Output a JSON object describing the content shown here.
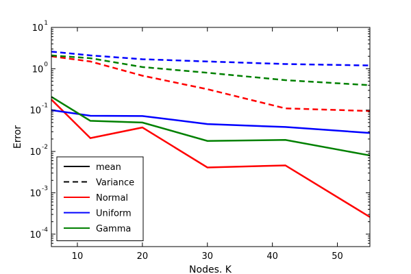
{
  "chart_data": {
    "type": "line",
    "xlabel": "Nodes. K",
    "ylabel": "Error",
    "xlim": [
      6,
      55
    ],
    "ylim": [
      5e-05,
      10
    ],
    "yscale": "log",
    "grid": false,
    "legend_position": "lower-left",
    "x_ticks": [
      10,
      20,
      30,
      40,
      50
    ],
    "y_ticks": [
      {
        "value": 0.0001,
        "base": "10",
        "exp": "-4"
      },
      {
        "value": 0.001,
        "base": "10",
        "exp": "-3"
      },
      {
        "value": 0.01,
        "base": "10",
        "exp": "-2"
      },
      {
        "value": 0.1,
        "base": "10",
        "exp": "-1"
      },
      {
        "value": 1,
        "base": "10",
        "exp": "0"
      },
      {
        "value": 10,
        "base": "10",
        "exp": "1"
      }
    ],
    "x": [
      6,
      12,
      20,
      30,
      42,
      55
    ],
    "series": [
      {
        "distribution": "Normal",
        "statistic": "mean",
        "color": "#ff0000",
        "dash": "solid",
        "values": [
          0.18,
          0.021,
          0.038,
          0.0041,
          0.0046,
          0.00026
        ]
      },
      {
        "distribution": "Normal",
        "statistic": "Variance",
        "color": "#ff0000",
        "dash": "dashed",
        "values": [
          2.0,
          1.5,
          0.68,
          0.32,
          0.11,
          0.095
        ]
      },
      {
        "distribution": "Uniform",
        "statistic": "mean",
        "color": "#0000ff",
        "dash": "solid",
        "values": [
          0.1,
          0.073,
          0.072,
          0.046,
          0.039,
          0.028
        ]
      },
      {
        "distribution": "Uniform",
        "statistic": "Variance",
        "color": "#0000ff",
        "dash": "dashed",
        "values": [
          2.6,
          2.1,
          1.7,
          1.5,
          1.3,
          1.2
        ]
      },
      {
        "distribution": "Gamma",
        "statistic": "mean",
        "color": "#008000",
        "dash": "solid",
        "values": [
          0.21,
          0.055,
          0.05,
          0.018,
          0.019,
          0.008
        ]
      },
      {
        "distribution": "Gamma",
        "statistic": "Variance",
        "color": "#008000",
        "dash": "dashed",
        "values": [
          2.1,
          1.8,
          1.1,
          0.8,
          0.53,
          0.4
        ]
      }
    ],
    "legend": [
      {
        "label": "mean",
        "color": "#000000",
        "dash": "solid"
      },
      {
        "label": "Variance",
        "color": "#000000",
        "dash": "dashed"
      },
      {
        "label": "Normal",
        "color": "#ff0000",
        "dash": "solid"
      },
      {
        "label": "Uniform",
        "color": "#0000ff",
        "dash": "solid"
      },
      {
        "label": "Gamma",
        "color": "#008000",
        "dash": "solid"
      }
    ]
  }
}
